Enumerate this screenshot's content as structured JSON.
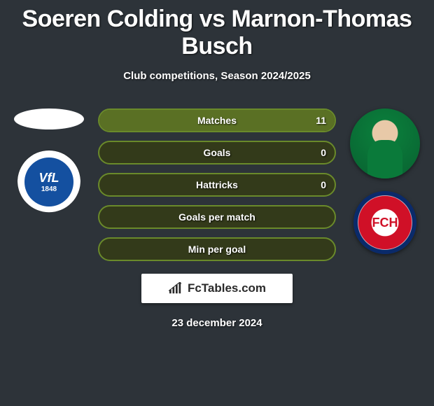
{
  "title": {
    "player1": "Soeren Colding",
    "player2": "Marnon-Thomas Busch",
    "separator": " vs ",
    "fontsize": 34,
    "color": "#ffffff"
  },
  "subtitle": {
    "text": "Club competitions, Season 2024/2025",
    "fontsize": 15,
    "color": "#ffffff"
  },
  "background_color": "#2d3339",
  "left": {
    "placeholder": true,
    "club": {
      "name": "VfL Bochum",
      "short": "VfL",
      "year": "1848",
      "bg": "#ffffff",
      "inner_bg": "#1450a0",
      "text_color": "#ffffff"
    }
  },
  "right": {
    "player_photo": {
      "shirt_color": "#0a7a3a",
      "skin_color": "#e8c9a8"
    },
    "club": {
      "name": "1. FC Heidenheim",
      "short": "FCH",
      "ring_outer": "#0a2a6a",
      "ring_inner": "#d01027",
      "center": "#ffffff",
      "text_color": "#d01027"
    }
  },
  "stats": {
    "bar_border_color": "#6a8a2a",
    "bar_bg_color": "#333a1a",
    "bar_fill_color": "#5a7024",
    "label_fontsize": 14,
    "label_color": "#ffffff",
    "rows": [
      {
        "label": "Matches",
        "left": "",
        "right": "11",
        "fill_right_pct": 100
      },
      {
        "label": "Goals",
        "left": "",
        "right": "0",
        "fill_right_pct": 0
      },
      {
        "label": "Hattricks",
        "left": "",
        "right": "0",
        "fill_right_pct": 0
      },
      {
        "label": "Goals per match",
        "left": "",
        "right": "",
        "fill_right_pct": 0
      },
      {
        "label": "Min per goal",
        "left": "",
        "right": "",
        "fill_right_pct": 0
      }
    ]
  },
  "brand": {
    "text": "FcTables.com",
    "bg": "#ffffff",
    "color": "#2a2a2a",
    "icon_color": "#2a2a2a"
  },
  "date": {
    "text": "23 december 2024",
    "fontsize": 15,
    "color": "#ffffff"
  }
}
